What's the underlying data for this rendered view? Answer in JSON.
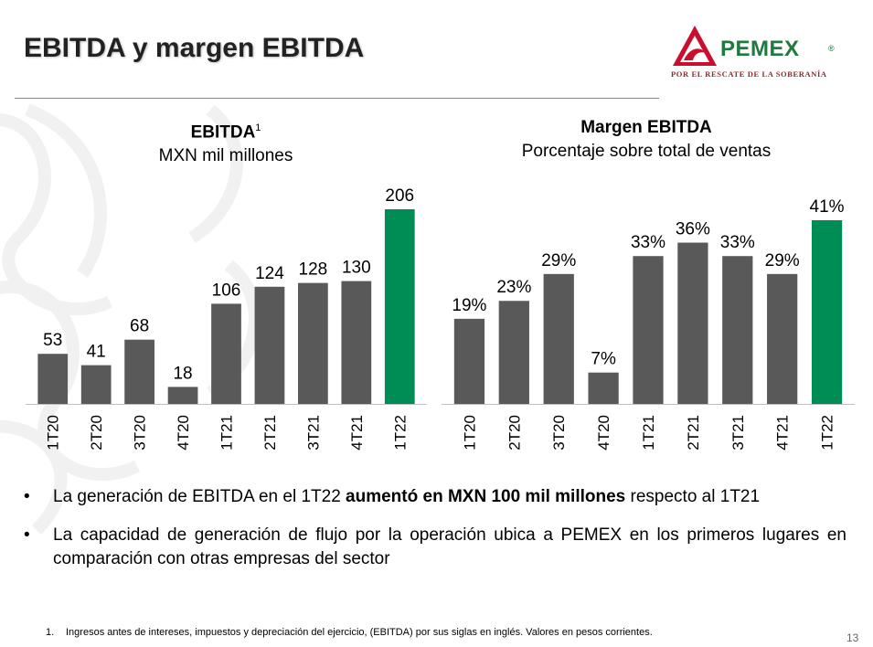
{
  "header": {
    "title": "EBITDA y margen EBITDA"
  },
  "logo": {
    "word": "PEMEX",
    "reg": "®",
    "tagline": "POR EL RESCATE DE LA SOBERANÍA"
  },
  "colors": {
    "bar": "#595959",
    "highlight": "#008C55",
    "logo_red": "#C8102E",
    "logo_green": "#1f7a3e"
  },
  "chart_data": [
    {
      "type": "bar",
      "title": "EBITDA",
      "title_sup": "1",
      "subtitle": "MXN mil millones",
      "categories": [
        "1T20",
        "2T20",
        "3T20",
        "4T20",
        "1T21",
        "2T21",
        "3T21",
        "4T21",
        "1T22"
      ],
      "values": [
        53,
        41,
        68,
        18,
        106,
        124,
        128,
        130,
        206
      ],
      "labels": [
        "53",
        "41",
        "68",
        "18",
        "106",
        "124",
        "128",
        "130",
        "206"
      ],
      "highlight_index": 8,
      "ylim": [
        0,
        206
      ]
    },
    {
      "type": "bar",
      "title": "Margen EBITDA",
      "subtitle": "Porcentaje sobre total de ventas",
      "categories": [
        "1T20",
        "2T20",
        "3T20",
        "4T20",
        "1T21",
        "2T21",
        "3T21",
        "4T21",
        "1T22"
      ],
      "values": [
        19,
        23,
        29,
        7,
        33,
        36,
        33,
        29,
        41
      ],
      "labels": [
        "19%",
        "23%",
        "29%",
        "7%",
        "33%",
        "36%",
        "33%",
        "29%",
        "41%"
      ],
      "highlight_index": 8,
      "ylim": [
        0,
        41
      ]
    }
  ],
  "bullets": [
    {
      "pre": "La generación de EBITDA en el 1T22 ",
      "bold": "aumentó en MXN 100 mil millones",
      "post": " respecto al 1T21"
    },
    {
      "pre": "La capacidad de generación de flujo por la operación ubica a PEMEX en los primeros lugares en comparación con otras empresas del sector",
      "bold": "",
      "post": ""
    }
  ],
  "bullet_char": "•",
  "footnote": {
    "num": "1.",
    "text": "Ingresos antes de intereses, impuestos y depreciación del ejercicio, (EBITDA)  por sus siglas en inglés. Valores en pesos corrientes."
  },
  "page_number": "13"
}
